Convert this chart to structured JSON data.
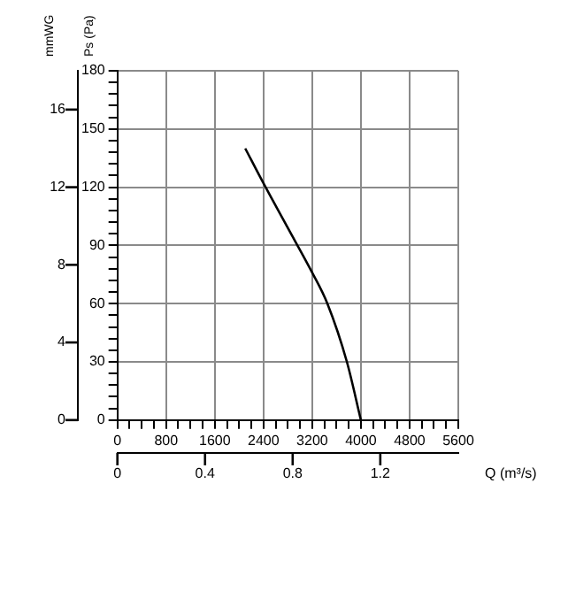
{
  "chart_data": {
    "type": "line",
    "ylabel": "Ps (Pa)",
    "y2label": "mmWG",
    "x2label": "Q (m³/s)",
    "x": [
      2100,
      2400,
      2800,
      3200,
      3450,
      3770,
      4000
    ],
    "series": [
      {
        "color": "#000000",
        "values": [
          140,
          122,
          99,
          76,
          60,
          30,
          0
        ]
      }
    ],
    "xlim": [
      0,
      5600
    ],
    "xticks": [
      0,
      {
        "value": 200,
        "label": null
      },
      {
        "value": 400,
        "label": null
      },
      {
        "value": 600,
        "label": null
      },
      800,
      {
        "value": 1000,
        "label": null
      },
      {
        "value": 1200,
        "label": null
      },
      {
        "value": 1400,
        "label": null
      },
      1600,
      {
        "value": 1800,
        "label": null
      },
      {
        "value": 2000,
        "label": null
      },
      {
        "value": 2200,
        "label": null
      },
      2400,
      {
        "value": 2600,
        "label": null
      },
      {
        "value": 2800,
        "label": null
      },
      {
        "value": 3000,
        "label": null
      },
      3200,
      {
        "value": 3400,
        "label": null
      },
      {
        "value": 3600,
        "label": null
      },
      {
        "value": 3800,
        "label": null
      },
      4000,
      {
        "value": 4200,
        "label": null
      },
      {
        "value": 4400,
        "label": null
      },
      {
        "value": 4600,
        "label": null
      },
      4800,
      {
        "value": 5000,
        "label": null
      },
      {
        "value": 5200,
        "label": null
      },
      {
        "value": 5400,
        "label": null
      },
      5600
    ],
    "ylim": [
      0,
      180
    ],
    "yticks": [
      0,
      {
        "value": 6,
        "label": null
      },
      {
        "value": 12,
        "label": null
      },
      {
        "value": 18,
        "label": null
      },
      {
        "value": 24,
        "label": null
      },
      30,
      {
        "value": 36,
        "label": null
      },
      {
        "value": 42,
        "label": null
      },
      {
        "value": 48,
        "label": null
      },
      {
        "value": 54,
        "label": null
      },
      60,
      {
        "value": 66,
        "label": null
      },
      {
        "value": 72,
        "label": null
      },
      {
        "value": 78,
        "label": null
      },
      {
        "value": 84,
        "label": null
      },
      90,
      {
        "value": 96,
        "label": null
      },
      {
        "value": 102,
        "label": null
      },
      {
        "value": 108,
        "label": null
      },
      {
        "value": 114,
        "label": null
      },
      120,
      {
        "value": 126,
        "label": null
      },
      {
        "value": 132,
        "label": null
      },
      {
        "value": 138,
        "label": null
      },
      {
        "value": 144,
        "label": null
      },
      150,
      {
        "value": 156,
        "label": null
      },
      {
        "value": 162,
        "label": null
      },
      {
        "value": 168,
        "label": null
      },
      {
        "value": 174,
        "label": null
      },
      180
    ],
    "y2lim": [
      0,
      18
    ],
    "y2ticks": [
      0,
      4,
      8,
      12,
      16
    ],
    "x2lim": [
      0,
      1.556
    ],
    "x2ticks": [
      0,
      0.4,
      0.8,
      1.2
    ],
    "grid": true,
    "legend": false
  }
}
